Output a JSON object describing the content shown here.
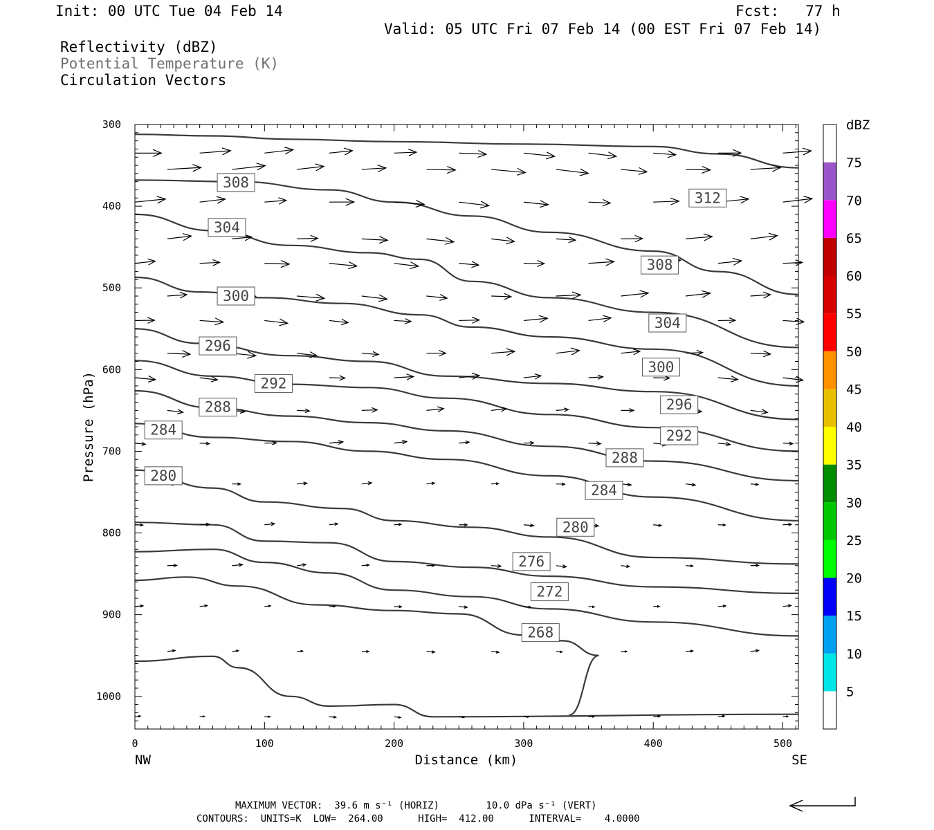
{
  "header": {
    "init": "Init: 00 UTC Tue 04 Feb 14",
    "fcst": "Fcst:   77 h",
    "valid": "Valid: 05 UTC Fri 07 Feb 14 (00 EST Fri 07 Feb 14)",
    "fields": [
      "Reflectivity (dBZ)",
      "Potential Temperature (K)",
      "Circulation Vectors"
    ]
  },
  "footer": {
    "line1": "MAXIMUM VECTOR:  39.6 m s⁻¹ (HORIZ)        10.0 dPa s⁻¹ (VERT)",
    "line2": "CONTOURS:  UNITS=K  LOW=  264.00      HIGH=  412.00      INTERVAL=    4.0000"
  },
  "colors": {
    "contour": "#3a3a3a",
    "frame": "#000000"
  },
  "chart_data": {
    "type": "contour",
    "xlabel": "Distance (km)",
    "ylabel": "Pressure (hPa)",
    "xlim": [
      0,
      512
    ],
    "ylim": [
      300,
      1040
    ],
    "y_scale": "pressure (inverted)",
    "x_ticks": [
      0,
      100,
      200,
      300,
      400,
      500
    ],
    "y_ticks": [
      300,
      400,
      500,
      600,
      700,
      800,
      900,
      1000
    ],
    "x_end_labels": {
      "left": "NW",
      "right": "SE"
    },
    "grid": false,
    "colorbar": {
      "title": "dBZ",
      "levels": [
        5,
        10,
        15,
        20,
        25,
        30,
        35,
        40,
        45,
        50,
        55,
        60,
        65,
        70,
        75
      ],
      "colors": [
        "#00e5e5",
        "#00a0f0",
        "#0000f6",
        "#00ff00",
        "#00c800",
        "#008c00",
        "#ffff00",
        "#e8c000",
        "#ff9000",
        "#ff0000",
        "#d60000",
        "#c00000",
        "#ff00ff",
        "#9955c9",
        "#ffffff"
      ]
    },
    "contours": [
      {
        "label": "312",
        "label_at": [
          442,
          390
        ],
        "points": [
          [
            0,
            312
          ],
          [
            60,
            314
          ],
          [
            120,
            318
          ],
          [
            200,
            321
          ],
          [
            300,
            324
          ],
          [
            400,
            327
          ],
          [
            450,
            336
          ],
          [
            512,
            353
          ]
        ]
      },
      {
        "label": "308",
        "label_at": [
          78,
          371
        ],
        "points": [
          [
            0,
            368
          ],
          [
            80,
            370
          ],
          [
            150,
            380
          ],
          [
            200,
            395
          ],
          [
            260,
            412
          ],
          [
            320,
            432
          ],
          [
            400,
            455
          ],
          [
            450,
            480
          ],
          [
            512,
            508
          ]
        ]
      },
      {
        "label": "308",
        "label_at": [
          405,
          472
        ],
        "points": []
      },
      {
        "label": "304",
        "label_at": [
          71,
          426
        ],
        "points": [
          [
            0,
            410
          ],
          [
            60,
            430
          ],
          [
            120,
            448
          ],
          [
            180,
            457
          ],
          [
            220,
            465
          ],
          [
            260,
            492
          ],
          [
            320,
            512
          ],
          [
            400,
            530
          ],
          [
            512,
            573
          ]
        ]
      },
      {
        "label": "304",
        "label_at": [
          411,
          543
        ],
        "points": []
      },
      {
        "label": "300",
        "label_at": [
          78,
          510
        ],
        "points": [
          [
            0,
            487
          ],
          [
            50,
            505
          ],
          [
            100,
            512
          ],
          [
            160,
            519
          ],
          [
            220,
            533
          ],
          [
            260,
            548
          ],
          [
            320,
            560
          ],
          [
            400,
            575
          ],
          [
            512,
            620
          ]
        ]
      },
      {
        "label": "300",
        "label_at": [
          406,
          597
        ],
        "points": []
      },
      {
        "label": "296",
        "label_at": [
          64,
          571
        ],
        "points": [
          [
            0,
            550
          ],
          [
            50,
            568
          ],
          [
            120,
            583
          ],
          [
            180,
            590
          ],
          [
            240,
            608
          ],
          [
            320,
            617
          ],
          [
            400,
            627
          ],
          [
            512,
            661
          ]
        ]
      },
      {
        "label": "296",
        "label_at": [
          420,
          643
        ],
        "points": []
      },
      {
        "label": "292",
        "label_at": [
          107,
          617
        ],
        "points": [
          [
            0,
            589
          ],
          [
            60,
            608
          ],
          [
            120,
            618
          ],
          [
            180,
            622
          ],
          [
            240,
            635
          ],
          [
            320,
            655
          ],
          [
            400,
            671
          ],
          [
            512,
            700
          ]
        ]
      },
      {
        "label": "292",
        "label_at": [
          420,
          681
        ],
        "points": []
      },
      {
        "label": "288",
        "label_at": [
          64,
          646
        ],
        "points": [
          [
            0,
            626
          ],
          [
            60,
            647
          ],
          [
            120,
            657
          ],
          [
            180,
            665
          ],
          [
            240,
            675
          ],
          [
            320,
            694
          ],
          [
            400,
            712
          ],
          [
            512,
            736
          ]
        ]
      },
      {
        "label": "288",
        "label_at": [
          378,
          708
        ],
        "points": []
      },
      {
        "label": "284",
        "label_at": [
          22,
          674
        ],
        "points": [
          [
            0,
            666
          ],
          [
            60,
            683
          ],
          [
            120,
            688
          ],
          [
            180,
            700
          ],
          [
            240,
            710
          ],
          [
            320,
            730
          ],
          [
            400,
            756
          ],
          [
            512,
            785
          ]
        ]
      },
      {
        "label": "284",
        "label_at": [
          362,
          748
        ],
        "points": []
      },
      {
        "label": "280",
        "label_at": [
          22,
          730
        ],
        "points": [
          [
            0,
            723
          ],
          [
            60,
            745
          ],
          [
            100,
            762
          ],
          [
            160,
            770
          ],
          [
            200,
            785
          ],
          [
            260,
            793
          ],
          [
            320,
            805
          ],
          [
            400,
            830
          ],
          [
            512,
            838
          ]
        ]
      },
      {
        "label": "280",
        "label_at": [
          340,
          793
        ],
        "points": []
      },
      {
        "label": "276",
        "label_at": [
          306,
          835
        ],
        "points": [
          [
            0,
            787
          ],
          [
            60,
            790
          ],
          [
            100,
            810
          ],
          [
            150,
            812
          ],
          [
            200,
            835
          ],
          [
            260,
            842
          ],
          [
            320,
            853
          ],
          [
            400,
            866
          ],
          [
            512,
            874
          ]
        ]
      },
      {
        "label": "272",
        "label_at": [
          320,
          872
        ],
        "points": [
          [
            0,
            823
          ],
          [
            60,
            820
          ],
          [
            100,
            836
          ],
          [
            150,
            849
          ],
          [
            200,
            870
          ],
          [
            260,
            878
          ],
          [
            320,
            893
          ],
          [
            400,
            909
          ],
          [
            512,
            926
          ]
        ]
      },
      {
        "label": "268",
        "label_at": [
          313,
          922
        ],
        "points": [
          [
            0,
            858
          ],
          [
            40,
            854
          ],
          [
            80,
            865
          ],
          [
            140,
            888
          ],
          [
            200,
            895
          ],
          [
            250,
            899
          ],
          [
            300,
            925
          ],
          [
            330,
            932
          ],
          [
            358,
            950
          ],
          [
            335,
            1023
          ]
        ]
      },
      {
        "label": "",
        "label_at": null,
        "points": [
          [
            0,
            957
          ],
          [
            60,
            951
          ],
          [
            80,
            965
          ],
          [
            120,
            1000
          ],
          [
            150,
            1012
          ],
          [
            200,
            1010
          ],
          [
            230,
            1025
          ],
          [
            512,
            1022
          ]
        ]
      }
    ],
    "vectors": {
      "description": "circulation vectors (mostly westerly, decreasing with pressure)",
      "rows": [
        {
          "p": 335,
          "u": 45,
          "w": 0
        },
        {
          "p": 355,
          "u": 50,
          "w": 0
        },
        {
          "p": 395,
          "u": 45,
          "w": 0
        },
        {
          "p": 440,
          "u": 40,
          "w": 0
        },
        {
          "p": 470,
          "u": 40,
          "w": 0
        },
        {
          "p": 510,
          "u": 40,
          "w": 0
        },
        {
          "p": 540,
          "u": 35,
          "w": 0
        },
        {
          "p": 580,
          "u": 35,
          "w": 0
        },
        {
          "p": 610,
          "u": 30,
          "w": 0
        },
        {
          "p": 650,
          "u": 25,
          "w": 0
        },
        {
          "p": 690,
          "u": 20,
          "w": 0
        },
        {
          "p": 740,
          "u": 15,
          "w": 0
        },
        {
          "p": 790,
          "u": 15,
          "w": 0
        },
        {
          "p": 840,
          "u": 15,
          "w": 0
        },
        {
          "p": 890,
          "u": 12,
          "w": 0
        },
        {
          "p": 945,
          "u": 12,
          "w": 0
        },
        {
          "p": 1025,
          "u": 10,
          "w": 0
        }
      ]
    }
  }
}
